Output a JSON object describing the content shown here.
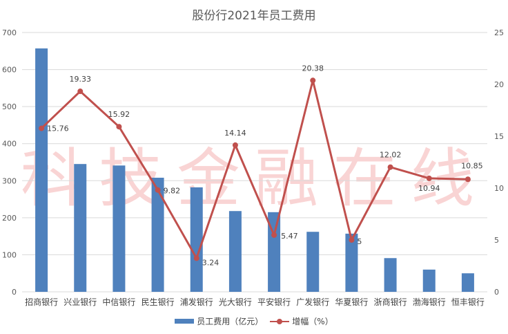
{
  "chart_data": {
    "type": "bar+line",
    "title": "股份行2021年员工费用",
    "categories": [
      "招商银行",
      "兴业银行",
      "中信银行",
      "民生银行",
      "浦发银行",
      "光大银行",
      "平安银行",
      "广发银行",
      "华夏银行",
      "浙商银行",
      "渤海银行",
      "恒丰银行"
    ],
    "series": [
      {
        "name": "员工费用（亿元）",
        "type": "bar",
        "axis": "left",
        "color": "#4f81bd",
        "values": [
          657,
          345,
          341,
          308,
          282,
          218,
          215,
          162,
          157,
          91,
          60,
          50
        ]
      },
      {
        "name": "增幅（%）",
        "type": "line",
        "axis": "right",
        "color": "#c0504d",
        "values": [
          15.76,
          19.33,
          15.92,
          9.82,
          3.24,
          14.14,
          5.47,
          20.38,
          5,
          12.02,
          10.94,
          10.85
        ],
        "labels": [
          "15.76",
          "19.33",
          "15.92",
          "9.82",
          "3.24",
          "14.14",
          "5.47",
          "20.38",
          "5",
          "12.02",
          "10.94",
          "10.85"
        ]
      }
    ],
    "y_left": {
      "min": 0,
      "max": 700,
      "ticks": [
        "0",
        "100",
        "200",
        "300",
        "400",
        "500",
        "600",
        "700"
      ]
    },
    "y_right": {
      "min": 0,
      "max": 25,
      "ticks": [
        "0",
        "5",
        "10",
        "15",
        "20",
        "25"
      ]
    },
    "grid": true,
    "legend_position": "bottom",
    "watermark": "科技金融在线"
  },
  "legend": {
    "bar_label": "员工费用（亿元）",
    "line_label": "增幅（%）"
  }
}
